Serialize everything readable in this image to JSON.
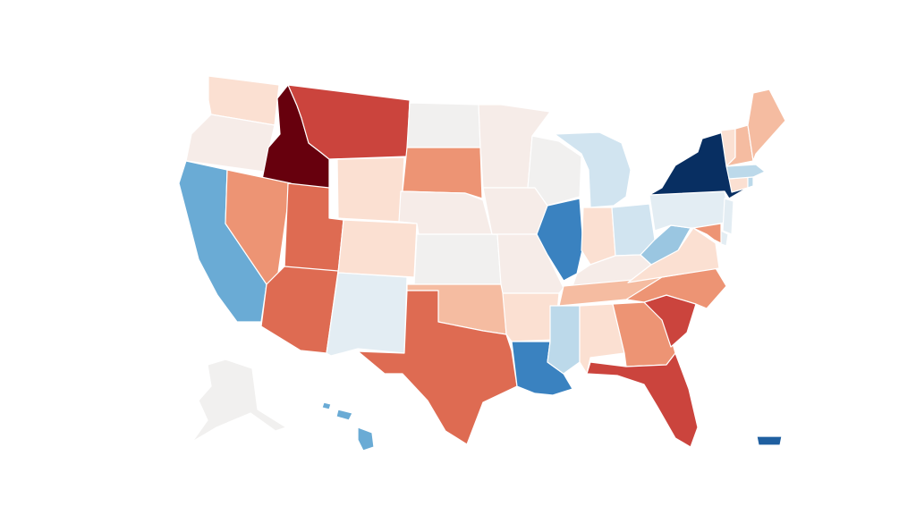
{
  "map": {
    "type": "choropleth",
    "region": "United States",
    "legend": "none",
    "palette": {
      "dark_red": "#67000d",
      "red": "#cb443d",
      "red_orange": "#de6b52",
      "salmon": "#ed9474",
      "light_salmon": "#f5bca1",
      "peach": "#fbe0d2",
      "blush": "#f6ece8",
      "neutral": "#f1f0ef",
      "ice": "#e3edf3",
      "pale_blue": "#d1e4f0",
      "light_blue": "#bcd9ea",
      "sky_blue": "#9ac6e1",
      "blue": "#6aabd5",
      "mid_blue": "#3a82c0",
      "navy": "#082f62",
      "deep_blue": "#1f5fa0"
    },
    "states": [
      {
        "id": "WA",
        "fill": "peach"
      },
      {
        "id": "OR",
        "fill": "blush"
      },
      {
        "id": "ID",
        "fill": "dark_red"
      },
      {
        "id": "MT",
        "fill": "red"
      },
      {
        "id": "WY",
        "fill": "peach"
      },
      {
        "id": "CA",
        "fill": "blue"
      },
      {
        "id": "NV",
        "fill": "salmon"
      },
      {
        "id": "UT",
        "fill": "red_orange"
      },
      {
        "id": "AZ",
        "fill": "red_orange"
      },
      {
        "id": "CO",
        "fill": "peach"
      },
      {
        "id": "NM",
        "fill": "ice"
      },
      {
        "id": "ND",
        "fill": "neutral"
      },
      {
        "id": "SD",
        "fill": "salmon"
      },
      {
        "id": "NE",
        "fill": "blush"
      },
      {
        "id": "KS",
        "fill": "neutral"
      },
      {
        "id": "OK",
        "fill": "light_salmon"
      },
      {
        "id": "TX",
        "fill": "red_orange"
      },
      {
        "id": "MN",
        "fill": "blush"
      },
      {
        "id": "IA",
        "fill": "blush"
      },
      {
        "id": "MO",
        "fill": "blush"
      },
      {
        "id": "AR",
        "fill": "peach"
      },
      {
        "id": "LA",
        "fill": "mid_blue"
      },
      {
        "id": "WI",
        "fill": "neutral"
      },
      {
        "id": "IL",
        "fill": "mid_blue"
      },
      {
        "id": "MI",
        "fill": "pale_blue"
      },
      {
        "id": "IN",
        "fill": "peach"
      },
      {
        "id": "OH",
        "fill": "pale_blue"
      },
      {
        "id": "KY",
        "fill": "blush"
      },
      {
        "id": "TN",
        "fill": "light_salmon"
      },
      {
        "id": "MS",
        "fill": "light_blue"
      },
      {
        "id": "AL",
        "fill": "peach"
      },
      {
        "id": "GA",
        "fill": "salmon"
      },
      {
        "id": "FL",
        "fill": "red"
      },
      {
        "id": "SC",
        "fill": "red"
      },
      {
        "id": "NC",
        "fill": "salmon"
      },
      {
        "id": "VA",
        "fill": "peach"
      },
      {
        "id": "WV",
        "fill": "sky_blue"
      },
      {
        "id": "PA",
        "fill": "ice"
      },
      {
        "id": "NY",
        "fill": "navy"
      },
      {
        "id": "NJ",
        "fill": "ice"
      },
      {
        "id": "DE",
        "fill": "ice"
      },
      {
        "id": "MD",
        "fill": "salmon"
      },
      {
        "id": "CT",
        "fill": "peach"
      },
      {
        "id": "RI",
        "fill": "light_blue"
      },
      {
        "id": "MA",
        "fill": "light_blue"
      },
      {
        "id": "VT",
        "fill": "peach"
      },
      {
        "id": "NH",
        "fill": "light_salmon"
      },
      {
        "id": "ME",
        "fill": "light_salmon"
      },
      {
        "id": "AK",
        "fill": "neutral"
      },
      {
        "id": "HI",
        "fill": "blue"
      },
      {
        "id": "PR",
        "fill": "deep_blue"
      }
    ]
  }
}
